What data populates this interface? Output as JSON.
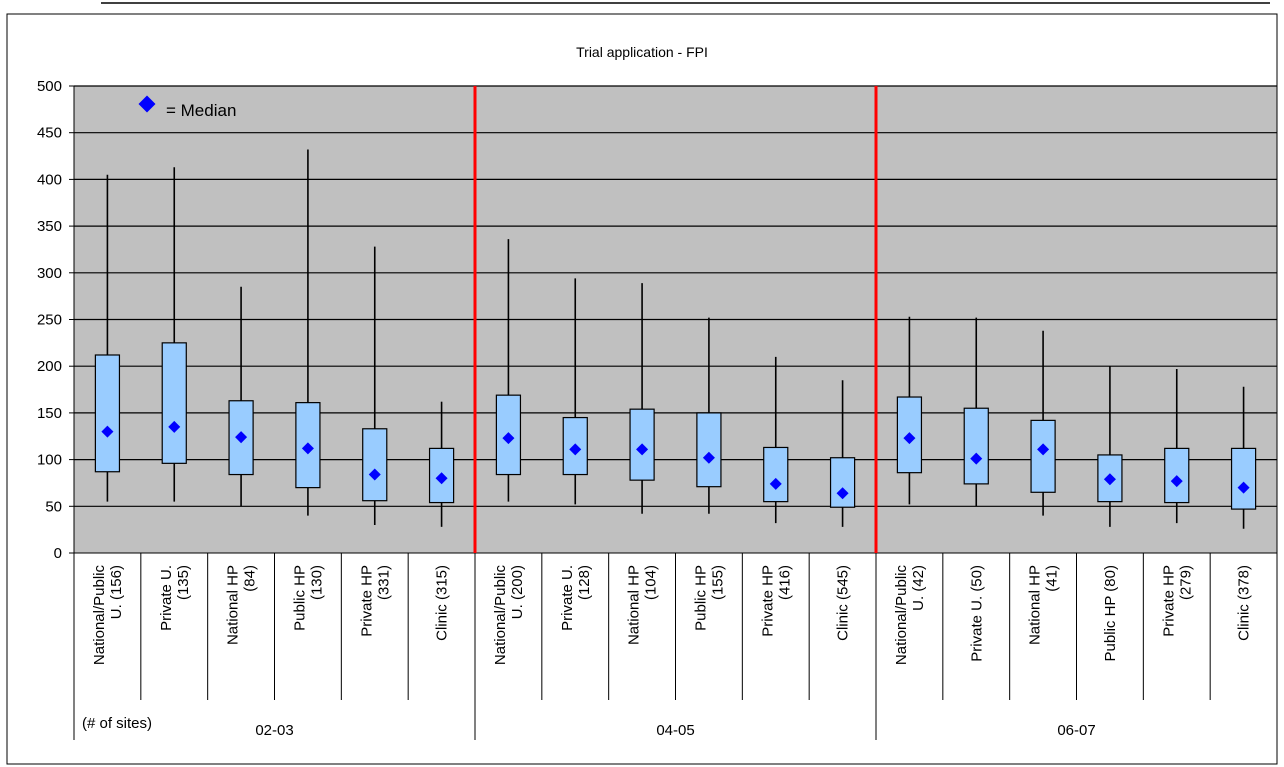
{
  "chart_data": {
    "type": "box",
    "title": "Trial application - FPI",
    "ylim": [
      0,
      500
    ],
    "yticks": [
      0,
      50,
      100,
      150,
      200,
      250,
      300,
      350,
      400,
      450,
      500
    ],
    "grid": true,
    "legend": {
      "label": "= Median",
      "placement": "top-left"
    },
    "sites_label": "(# of sites)",
    "groups": [
      "02-03",
      "04-05",
      "06-07"
    ],
    "colors": {
      "plot_bg": "#c0c0c0",
      "box_fill": "#99ccff",
      "median": "#0000ff",
      "divider": "#ff0000"
    },
    "categories": [
      {
        "group": "02-03",
        "label": "National/Public U. (156)",
        "lines": [
          "National/Public",
          "U. (156)"
        ],
        "min": 55,
        "q1": 87,
        "median": 130,
        "q3": 212,
        "max": 405
      },
      {
        "group": "02-03",
        "label": "Private U. (135)",
        "lines": [
          "Private U.",
          "(135)"
        ],
        "min": 55,
        "q1": 96,
        "median": 135,
        "q3": 225,
        "max": 413
      },
      {
        "group": "02-03",
        "label": "National HP (84)",
        "lines": [
          "National HP",
          "(84)"
        ],
        "min": 50,
        "q1": 84,
        "median": 124,
        "q3": 163,
        "max": 285
      },
      {
        "group": "02-03",
        "label": "Public HP (130)",
        "lines": [
          "Public HP",
          "(130)"
        ],
        "min": 40,
        "q1": 70,
        "median": 112,
        "q3": 161,
        "max": 432
      },
      {
        "group": "02-03",
        "label": "Private HP (331)",
        "lines": [
          "Private HP",
          "(331)"
        ],
        "min": 30,
        "q1": 56,
        "median": 84,
        "q3": 133,
        "max": 328
      },
      {
        "group": "02-03",
        "label": "Clinic (315)",
        "lines": [
          "Clinic (315)"
        ],
        "min": 28,
        "q1": 54,
        "median": 80,
        "q3": 112,
        "max": 162
      },
      {
        "group": "04-05",
        "label": "National/Public U. (200)",
        "lines": [
          "National/Public",
          "U. (200)"
        ],
        "min": 55,
        "q1": 84,
        "median": 123,
        "q3": 169,
        "max": 336
      },
      {
        "group": "04-05",
        "label": "Private U. (128)",
        "lines": [
          "Private U.",
          "(128)"
        ],
        "min": 52,
        "q1": 84,
        "median": 111,
        "q3": 145,
        "max": 294
      },
      {
        "group": "04-05",
        "label": "National HP (104)",
        "lines": [
          "National HP",
          "(104)"
        ],
        "min": 42,
        "q1": 78,
        "median": 111,
        "q3": 154,
        "max": 289
      },
      {
        "group": "04-05",
        "label": "Public HP (155)",
        "lines": [
          "Public HP",
          "(155)"
        ],
        "min": 42,
        "q1": 71,
        "median": 102,
        "q3": 150,
        "max": 252
      },
      {
        "group": "04-05",
        "label": "Private HP (416)",
        "lines": [
          "Private HP",
          "(416)"
        ],
        "min": 32,
        "q1": 55,
        "median": 74,
        "q3": 113,
        "max": 210
      },
      {
        "group": "04-05",
        "label": "Clinic (545)",
        "lines": [
          "Clinic (545)"
        ],
        "min": 28,
        "q1": 49,
        "median": 64,
        "q3": 102,
        "max": 185
      },
      {
        "group": "06-07",
        "label": "National/Public U. (42)",
        "lines": [
          "National/Public",
          "U. (42)"
        ],
        "min": 52,
        "q1": 86,
        "median": 123,
        "q3": 167,
        "max": 253
      },
      {
        "group": "06-07",
        "label": "Private U. (50)",
        "lines": [
          "Private U. (50)"
        ],
        "min": 50,
        "q1": 74,
        "median": 101,
        "q3": 155,
        "max": 252
      },
      {
        "group": "06-07",
        "label": "National HP (41)",
        "lines": [
          "National HP",
          "(41)"
        ],
        "min": 40,
        "q1": 65,
        "median": 111,
        "q3": 142,
        "max": 238
      },
      {
        "group": "06-07",
        "label": "Public HP (80)",
        "lines": [
          "Public HP (80)"
        ],
        "min": 28,
        "q1": 55,
        "median": 79,
        "q3": 105,
        "max": 200
      },
      {
        "group": "06-07",
        "label": "Private HP (279)",
        "lines": [
          "Private HP",
          "(279)"
        ],
        "min": 32,
        "q1": 54,
        "median": 77,
        "q3": 112,
        "max": 197
      },
      {
        "group": "06-07",
        "label": "Clinic (378)",
        "lines": [
          "Clinic (378)"
        ],
        "min": 26,
        "q1": 47,
        "median": 70,
        "q3": 112,
        "max": 178
      }
    ]
  }
}
